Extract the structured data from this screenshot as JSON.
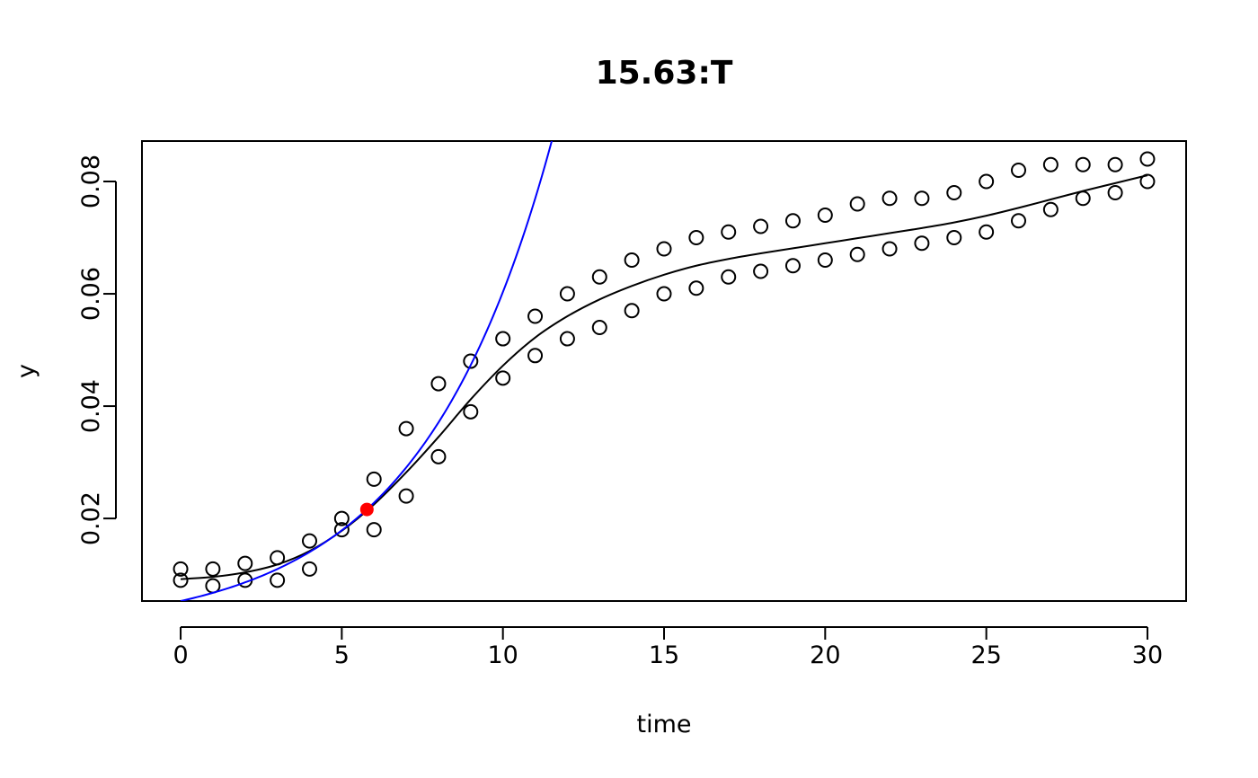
{
  "chart_data": {
    "type": "scatter",
    "title": "15.63:T",
    "xlabel": "time",
    "ylabel": "y",
    "xlim": [
      -1.2,
      31.2
    ],
    "ylim": [
      0.0053,
      0.0872
    ],
    "x_ticks": [
      0,
      5,
      10,
      15,
      20,
      25,
      30
    ],
    "x_tick_labels": [
      "0",
      "5",
      "10",
      "15",
      "20",
      "25",
      "30"
    ],
    "y_ticks": [
      0.02,
      0.04,
      0.06,
      0.08
    ],
    "y_tick_labels": [
      "0.02",
      "0.04",
      "0.06",
      "0.08"
    ],
    "grid": false,
    "legend": "none",
    "colors": {
      "points": "#000000",
      "smooth": "#000000",
      "exp_fit": "#0000ff",
      "marker": "#ff0000"
    },
    "series": [
      {
        "kind": "points",
        "x": [
          0,
          0,
          1,
          1,
          2,
          2,
          3,
          3,
          4,
          4,
          5,
          5,
          6,
          6,
          7,
          7,
          8,
          8,
          9,
          9,
          10,
          10,
          11,
          11,
          12,
          12,
          13,
          13,
          14,
          14,
          15,
          15,
          16,
          16,
          17,
          17,
          18,
          18,
          19,
          19,
          20,
          20,
          21,
          21,
          22,
          22,
          23,
          23,
          24,
          24,
          25,
          25,
          26,
          26,
          27,
          27,
          28,
          28,
          29,
          29,
          30,
          30
        ],
        "y": [
          0.011,
          0.009,
          0.011,
          0.008,
          0.012,
          0.009,
          0.013,
          0.009,
          0.016,
          0.011,
          0.02,
          0.018,
          0.027,
          0.018,
          0.036,
          0.024,
          0.044,
          0.031,
          0.048,
          0.039,
          0.052,
          0.045,
          0.056,
          0.049,
          0.06,
          0.052,
          0.063,
          0.054,
          0.066,
          0.057,
          0.068,
          0.06,
          0.07,
          0.061,
          0.071,
          0.063,
          0.072,
          0.064,
          0.073,
          0.065,
          0.074,
          0.066,
          0.076,
          0.067,
          0.077,
          0.068,
          0.077,
          0.069,
          0.078,
          0.07,
          0.08,
          0.071,
          0.082,
          0.073,
          0.083,
          0.075,
          0.083,
          0.077,
          0.083,
          0.078,
          0.084,
          0.08
        ]
      },
      {
        "kind": "smooth-line",
        "x": [
          0,
          1,
          2,
          3,
          4,
          5,
          6,
          7,
          8,
          9,
          10,
          11,
          12,
          13,
          14,
          15,
          16,
          17,
          18,
          19,
          20,
          21,
          22,
          23,
          24,
          25,
          26,
          27,
          28,
          29,
          30
        ],
        "y": [
          0.0092,
          0.0096,
          0.0104,
          0.0118,
          0.0142,
          0.0178,
          0.0225,
          0.0282,
          0.0345,
          0.0412,
          0.0472,
          0.0522,
          0.056,
          0.059,
          0.0614,
          0.0634,
          0.065,
          0.0662,
          0.0672,
          0.0681,
          0.069,
          0.0699,
          0.0708,
          0.0717,
          0.0727,
          0.0739,
          0.0753,
          0.0768,
          0.0783,
          0.0797,
          0.0811
        ]
      },
      {
        "kind": "exponential-fit",
        "y0": 0.0053,
        "rate": 0.2432,
        "x_start": 0
      },
      {
        "kind": "highlight-point",
        "x": 5.78,
        "y": 0.0216
      }
    ]
  }
}
